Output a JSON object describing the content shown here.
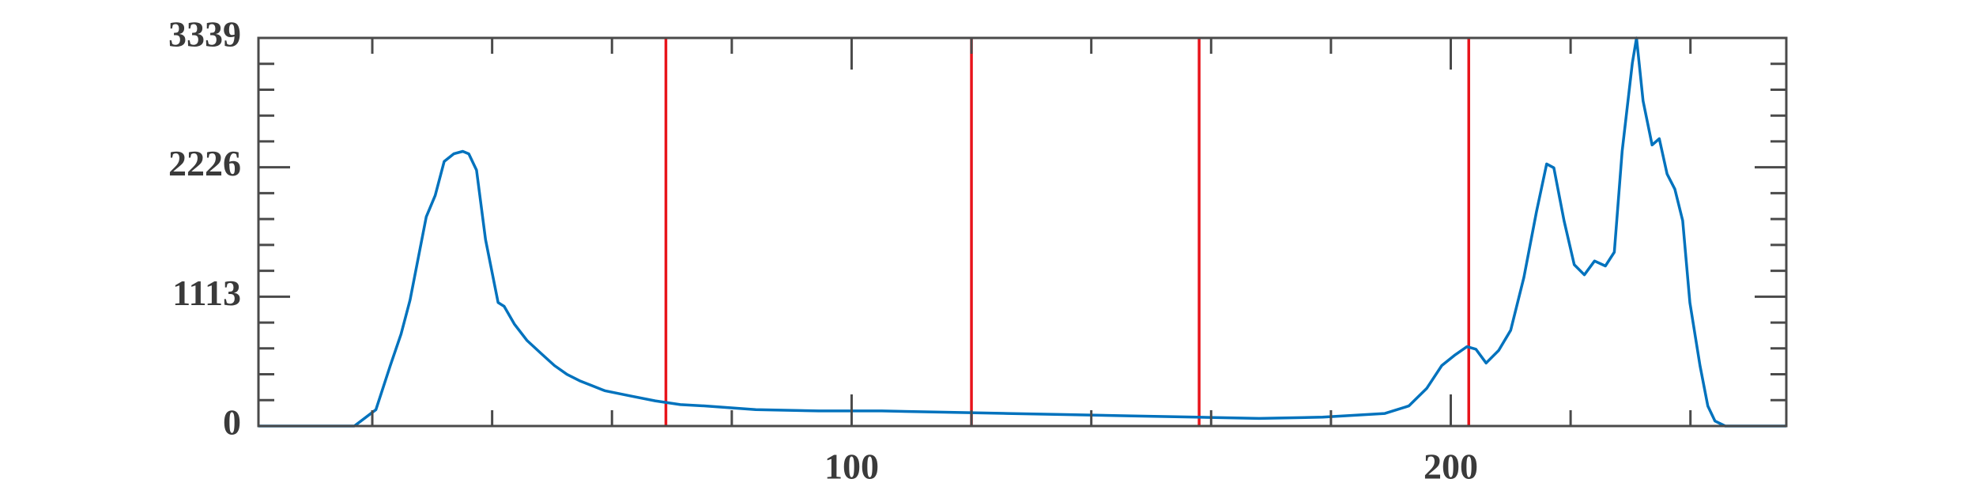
{
  "chart_data": {
    "type": "line",
    "x": [
      1,
      17,
      20.6,
      23,
      24.8,
      26.3,
      29,
      30.5,
      32,
      33.6,
      35.1,
      36.1,
      37.4,
      38.9,
      41,
      42,
      43.7,
      45.8,
      48.3,
      50.4,
      52.5,
      54.6,
      56.7,
      58.8,
      63,
      67.2,
      71.4,
      75.6,
      84,
      94.5,
      105,
      115.5,
      126,
      136.5,
      147,
      157.5,
      168,
      178.6,
      189,
      193,
      196,
      198.5,
      200.6,
      202.7,
      204.2,
      205.9,
      208,
      210,
      212.2,
      214.3,
      216,
      217.2,
      218.9,
      220.6,
      222.3,
      224,
      225.8,
      227.3,
      228.6,
      230.3,
      231,
      232.1,
      233.6,
      234.8,
      236.1,
      237.4,
      238.7,
      239.9,
      241.6,
      242.9,
      244.1,
      245.8,
      256
    ],
    "series": [
      {
        "color": "#0072bd",
        "values": [
          0,
          0,
          141,
          520,
          791,
          1084,
          1800,
          1984,
          2277,
          2342,
          2363,
          2342,
          2201,
          1604,
          1062,
          1030,
          878,
          737,
          618,
          520,
          444,
          390,
          347,
          304,
          260,
          217,
          184,
          173,
          141,
          130,
          130,
          119,
          108,
          98,
          87,
          76,
          65,
          76,
          108,
          173,
          325,
          520,
          607,
          683,
          661,
          542,
          650,
          824,
          1279,
          1843,
          2255,
          2222,
          1767,
          1388,
          1301,
          1420,
          1377,
          1496,
          2363,
          3122,
          3339,
          2797,
          2418,
          2472,
          2168,
          2038,
          1767,
          1062,
          520,
          173,
          43,
          0,
          0
        ]
      }
    ],
    "vlines": [
      69,
      120,
      158,
      203
    ],
    "vline_color": "#e8141b",
    "xlim": [
      1,
      256
    ],
    "ylim": [
      0,
      3339
    ],
    "xticks": [
      100,
      200
    ],
    "yticks": [
      0,
      1113,
      2226,
      3339
    ],
    "xminorticks": [
      20,
      40,
      60,
      80,
      120,
      140,
      160,
      180,
      220,
      240
    ],
    "yminorticks": [
      222.6,
      445.2,
      667.8,
      890.4,
      1335.6,
      1558.2,
      1780.8,
      2003.4,
      2448.6,
      2671.2,
      2893.8,
      3116.4
    ]
  }
}
